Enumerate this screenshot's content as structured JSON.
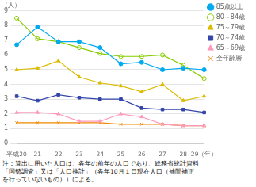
{
  "chart_data": {
    "type": "line",
    "y_label": "（人）",
    "categories": [
      "平成20",
      "21",
      "22",
      "23",
      "24",
      "25",
      "26",
      "27",
      "28",
      "29（年）"
    ],
    "series": [
      {
        "name": "85歳以上",
        "color": "#00AAEE",
        "marker": "circle",
        "line_style": "solid",
        "values": [
          6.7,
          7.9,
          6.9,
          6.9,
          6.5,
          5.4,
          5.5,
          5.0,
          5.1,
          5.0
        ]
      },
      {
        "name": "80～84歳",
        "color": "#88CC00",
        "marker": "open_circle",
        "line_style": "solid",
        "values": [
          8.5,
          7.1,
          6.9,
          6.5,
          6.1,
          5.9,
          5.9,
          6.0,
          5.3,
          4.4
        ]
      },
      {
        "name": "75～79歳",
        "color": "#DDBB00",
        "marker": "triangle",
        "line_style": "solid",
        "values": [
          5.0,
          5.1,
          5.6,
          4.5,
          4.1,
          3.9,
          3.5,
          4.0,
          2.9,
          3.2
        ]
      },
      {
        "name": "70～74歳",
        "color": "#3344AA",
        "marker": "square",
        "line_style": "solid",
        "values": [
          3.2,
          2.9,
          3.3,
          3.1,
          3.0,
          3.0,
          2.4,
          2.3,
          2.3,
          2.1
        ]
      },
      {
        "name": "65～69歳",
        "color": "#FF99BB",
        "marker": "triangle",
        "line_style": "solid",
        "values": [
          2.1,
          2.1,
          2.0,
          1.5,
          1.5,
          2.0,
          1.8,
          1.3,
          1.2,
          1.2
        ]
      },
      {
        "name": "全年齢層",
        "color": "#EE8800",
        "marker": "x",
        "line_style": "solid",
        "values": [
          1.4,
          1.4,
          1.4,
          1.4,
          1.4,
          1.3,
          1.3,
          1.3,
          1.2,
          1.2
        ]
      }
    ],
    "ylim": [
      0,
      9
    ],
    "yticks": [
      0,
      1,
      2,
      3,
      4,
      5,
      6,
      7,
      8,
      9
    ],
    "grid": true,
    "legend": "upper right",
    "annotations": [
      "注：算出に用いた人口は、各年の前年の人口であり、総務省統計資料",
      "「国勢調査」又は「人口推計」（各年10月１日現在人口（補間補正",
      "を行っていないもの））による。"
    ]
  }
}
